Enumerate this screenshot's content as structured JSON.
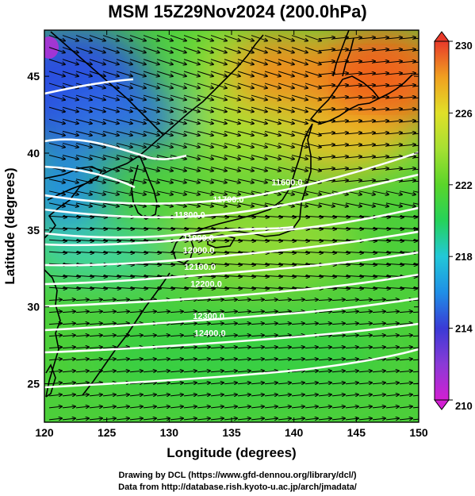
{
  "title": "MSM 15Z29Nov2024 (200.0hPa)",
  "map": {
    "xlabel": "Longitude (degrees)",
    "ylabel": "Latitude  (degrees)",
    "xlim": [
      120,
      150
    ],
    "ylim": [
      22.5,
      48
    ],
    "xticks": [
      120,
      125,
      130,
      135,
      140,
      145,
      150
    ],
    "yticks": [
      25,
      30,
      35,
      40,
      45
    ],
    "shaded_field": "temperature (K)",
    "vectors": "wind",
    "contour_labels": [
      {
        "text": "11600.0",
        "lon": 138.2,
        "lat": 37.9
      },
      {
        "text": "11700.0",
        "lon": 133.5,
        "lat": 36.8
      },
      {
        "text": "11800.0",
        "lon": 130.4,
        "lat": 35.8
      },
      {
        "text": "11900.0",
        "lon": 131.1,
        "lat": 34.3
      },
      {
        "text": "12000.0",
        "lon": 131.1,
        "lat": 33.5
      },
      {
        "text": "12100.0",
        "lon": 131.2,
        "lat": 32.4
      },
      {
        "text": "12200.0",
        "lon": 131.7,
        "lat": 31.3
      },
      {
        "text": "12300.0",
        "lon": 131.9,
        "lat": 29.2
      },
      {
        "text": "12400.0",
        "lon": 132.0,
        "lat": 28.1
      }
    ]
  },
  "colorbar": {
    "ticks": [
      "230",
      "226",
      "222",
      "218",
      "214",
      "210"
    ],
    "min": 210,
    "max": 230,
    "colors": [
      "#d21fd2",
      "#3a3ad6",
      "#1f8fe6",
      "#22c8d8",
      "#25d25a",
      "#5ad52a",
      "#a6e032",
      "#e0e028",
      "#f0a020",
      "#f05a18",
      "#e83a2a"
    ]
  },
  "credits": {
    "line1": "Drawing by DCL (https://www.gfd-dennou.org/library/dcl/)",
    "line2": "Data from http://database.rish.kyoto-u.ac.jp/arch/jmadata/"
  }
}
